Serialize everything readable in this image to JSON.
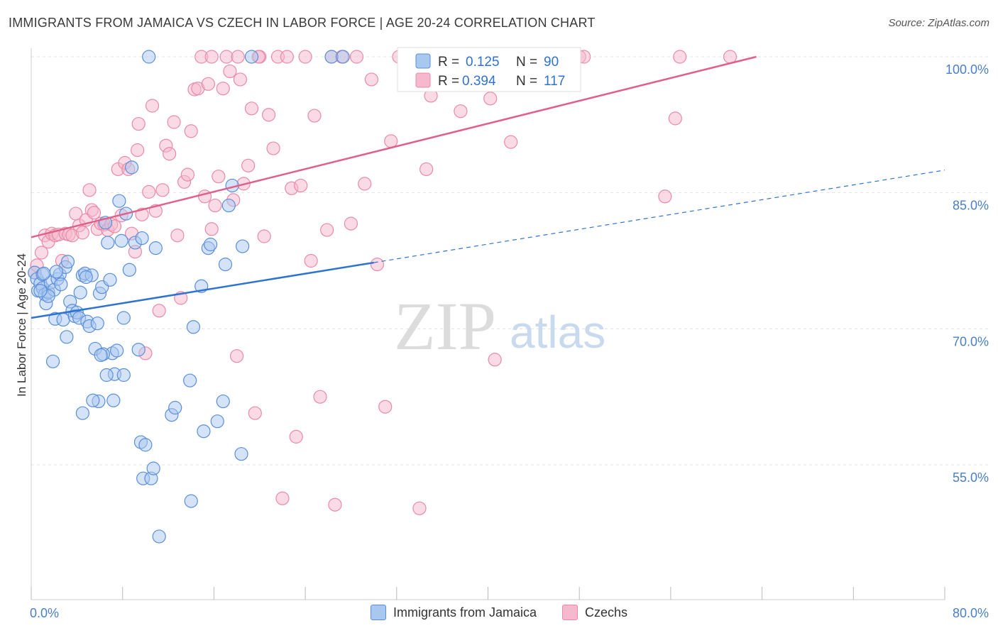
{
  "title": "IMMIGRANTS FROM JAMAICA VS CZECH IN LABOR FORCE | AGE 20-24 CORRELATION CHART",
  "source": "Source: ZipAtlas.com",
  "watermark": {
    "zip": "ZIP",
    "atlas": "atlas"
  },
  "colors": {
    "blue_fill": "#a9c8f0",
    "blue_stroke": "#5a8fd8",
    "blue_line": "#2f73d0",
    "pink_fill": "#f5b8cc",
    "pink_stroke": "#e98aa8",
    "pink_line": "#e0608a",
    "value_text": "#2f73d0",
    "grid": "#e3e3e3"
  },
  "legend_stats": [
    {
      "r_label": "R =",
      "r_value": "0.125",
      "n_label": "N =",
      "n_value": "90"
    },
    {
      "r_label": "R =",
      "r_value": "0.394",
      "n_label": "N =",
      "n_value": "117"
    }
  ],
  "chart_data": {
    "type": "scatter",
    "xlabel": "",
    "ylabel": "In Labor Force | Age 20-24",
    "xlim": [
      0,
      80
    ],
    "ylim": [
      40,
      102
    ],
    "x_tick_labels": [
      {
        "value": 0,
        "label": "0.0%"
      },
      {
        "value": 80,
        "label": "80.0%"
      }
    ],
    "y_tick_labels": [
      {
        "value": 100,
        "label": "100.0%"
      },
      {
        "value": 85,
        "label": "85.0%"
      },
      {
        "value": 70,
        "label": "70.0%"
      },
      {
        "value": 55,
        "label": "55.0%"
      }
    ],
    "legend_position": "bottom",
    "series": [
      {
        "name": "Immigrants from Jamaica",
        "color": "blue",
        "trend": {
          "x0": 0,
          "y0": 71.2,
          "x1": 30,
          "y1": 77.3,
          "dash_to_x": 80,
          "dash_to_y": 87.5
        },
        "points": [
          [
            0.3,
            76.2
          ],
          [
            0.5,
            75.5
          ],
          [
            0.6,
            74.2
          ],
          [
            0.8,
            75.0
          ],
          [
            1.0,
            74.5
          ],
          [
            1.0,
            76.0
          ],
          [
            1.2,
            73.8
          ],
          [
            1.3,
            72.8
          ],
          [
            1.5,
            74.0
          ],
          [
            1.7,
            75.1
          ],
          [
            1.9,
            66.4
          ],
          [
            2.0,
            74.3
          ],
          [
            2.1,
            71.1
          ],
          [
            2.3,
            75.5
          ],
          [
            2.5,
            76.0
          ],
          [
            2.6,
            74.9
          ],
          [
            2.8,
            71.0
          ],
          [
            3.0,
            76.8
          ],
          [
            3.2,
            77.4
          ],
          [
            3.4,
            73.0
          ],
          [
            3.6,
            72.0
          ],
          [
            3.8,
            71.4
          ],
          [
            4.0,
            71.8
          ],
          [
            4.2,
            71.2
          ],
          [
            4.3,
            74.0
          ],
          [
            4.5,
            75.9
          ],
          [
            4.7,
            76.1
          ],
          [
            4.9,
            70.8
          ],
          [
            5.1,
            70.3
          ],
          [
            5.3,
            75.9
          ],
          [
            5.6,
            67.8
          ],
          [
            5.8,
            70.6
          ],
          [
            6.0,
            73.9
          ],
          [
            6.2,
            74.6
          ],
          [
            6.5,
            81.7
          ],
          [
            6.7,
            79.5
          ],
          [
            6.9,
            75.4
          ],
          [
            7.1,
            67.3
          ],
          [
            7.3,
            65.0
          ],
          [
            7.5,
            67.6
          ],
          [
            7.7,
            84.1
          ],
          [
            7.9,
            79.7
          ],
          [
            8.1,
            71.2
          ],
          [
            8.3,
            82.7
          ],
          [
            8.6,
            76.5
          ],
          [
            8.8,
            87.8
          ],
          [
            9.1,
            79.5
          ],
          [
            9.4,
            67.7
          ],
          [
            9.6,
            57.5
          ],
          [
            9.8,
            53.5
          ],
          [
            10.0,
            57.2
          ],
          [
            10.3,
            100.0
          ],
          [
            10.5,
            53.5
          ],
          [
            10.7,
            54.6
          ],
          [
            10.9,
            78.9
          ],
          [
            11.2,
            47.1
          ],
          [
            6.3,
            67.2
          ],
          [
            5.9,
            62.0
          ],
          [
            7.2,
            62.1
          ],
          [
            12.3,
            60.5
          ],
          [
            12.6,
            61.3
          ],
          [
            13.9,
            64.3
          ],
          [
            14.0,
            51.0
          ],
          [
            14.2,
            70.2
          ],
          [
            14.9,
            74.7
          ],
          [
            15.1,
            58.7
          ],
          [
            15.5,
            78.9
          ],
          [
            15.7,
            79.3
          ],
          [
            16.3,
            59.8
          ],
          [
            17.0,
            77.1
          ],
          [
            17.3,
            83.6
          ],
          [
            17.6,
            85.8
          ],
          [
            18.4,
            56.2
          ],
          [
            18.5,
            79.1
          ],
          [
            19.3,
            100.0
          ],
          [
            26.3,
            100.0
          ],
          [
            27.3,
            100.0
          ],
          [
            5.4,
            62.1
          ],
          [
            4.5,
            60.7
          ],
          [
            9.7,
            80.0
          ],
          [
            1.5,
            73.6
          ],
          [
            3.1,
            69.1
          ],
          [
            2.2,
            76.3
          ],
          [
            0.8,
            74.2
          ],
          [
            1.1,
            76.1
          ],
          [
            4.8,
            75.7
          ],
          [
            6.6,
            64.9
          ],
          [
            8.1,
            64.9
          ],
          [
            16.8,
            62.0
          ],
          [
            6.1,
            67.1
          ]
        ]
      },
      {
        "name": "Czechs",
        "color": "pink",
        "trend": {
          "x0": 0,
          "y0": 80.1,
          "x1": 63.5,
          "y1": 100.0
        },
        "points": [
          [
            0.3,
            76.2
          ],
          [
            0.5,
            77.0
          ],
          [
            0.9,
            78.4
          ],
          [
            1.2,
            80.3
          ],
          [
            1.5,
            79.6
          ],
          [
            1.8,
            80.5
          ],
          [
            2.1,
            80.3
          ],
          [
            2.4,
            80.4
          ],
          [
            2.7,
            77.5
          ],
          [
            3.0,
            80.5
          ],
          [
            3.3,
            80.4
          ],
          [
            3.6,
            80.3
          ],
          [
            3.9,
            82.7
          ],
          [
            4.2,
            81.4
          ],
          [
            4.5,
            80.6
          ],
          [
            4.8,
            82.0
          ],
          [
            5.1,
            85.3
          ],
          [
            5.3,
            83.1
          ],
          [
            5.5,
            82.8
          ],
          [
            5.8,
            81.0
          ],
          [
            6.1,
            81.6
          ],
          [
            6.4,
            81.5
          ],
          [
            6.7,
            80.9
          ],
          [
            7.0,
            81.5
          ],
          [
            7.3,
            81.3
          ],
          [
            7.6,
            87.6
          ],
          [
            7.9,
            82.5
          ],
          [
            8.2,
            88.3
          ],
          [
            8.5,
            87.6
          ],
          [
            8.8,
            80.5
          ],
          [
            9.1,
            78.5
          ],
          [
            9.4,
            92.6
          ],
          [
            9.7,
            82.6
          ],
          [
            10.0,
            67.3
          ],
          [
            10.3,
            85.1
          ],
          [
            10.6,
            94.6
          ],
          [
            10.9,
            83.0
          ],
          [
            11.2,
            72.0
          ],
          [
            11.5,
            85.3
          ],
          [
            11.8,
            90.2
          ],
          [
            12.1,
            89.3
          ],
          [
            12.5,
            92.8
          ],
          [
            12.8,
            80.3
          ],
          [
            13.1,
            73.4
          ],
          [
            13.4,
            86.2
          ],
          [
            13.7,
            87.0
          ],
          [
            14.0,
            91.8
          ],
          [
            14.3,
            96.4
          ],
          [
            14.6,
            96.5
          ],
          [
            14.9,
            100.0
          ],
          [
            15.2,
            84.6
          ],
          [
            15.5,
            97.0
          ],
          [
            15.8,
            81.0
          ],
          [
            16.1,
            83.6
          ],
          [
            16.4,
            86.8
          ],
          [
            16.8,
            96.5
          ],
          [
            17.1,
            100.0
          ],
          [
            17.4,
            98.4
          ],
          [
            17.7,
            84.2
          ],
          [
            18.0,
            67.0
          ],
          [
            18.3,
            97.5
          ],
          [
            18.6,
            86.0
          ],
          [
            19.0,
            88.0
          ],
          [
            19.3,
            94.3
          ],
          [
            19.6,
            60.7
          ],
          [
            20.0,
            100.0
          ],
          [
            20.4,
            80.2
          ],
          [
            20.8,
            93.6
          ],
          [
            21.2,
            89.9
          ],
          [
            21.6,
            100.0
          ],
          [
            22.0,
            51.3
          ],
          [
            22.4,
            100.0
          ],
          [
            22.8,
            85.5
          ],
          [
            23.2,
            58.1
          ],
          [
            23.6,
            85.8
          ],
          [
            24.0,
            100.0
          ],
          [
            24.5,
            77.5
          ],
          [
            24.8,
            93.5
          ],
          [
            25.3,
            62.5
          ],
          [
            25.9,
            80.9
          ],
          [
            26.3,
            100.0
          ],
          [
            26.6,
            50.6
          ],
          [
            27.2,
            100.0
          ],
          [
            28.0,
            81.6
          ],
          [
            28.5,
            100.0
          ],
          [
            29.2,
            86.0
          ],
          [
            29.8,
            97.5
          ],
          [
            30.3,
            77.1
          ],
          [
            31.0,
            61.4
          ],
          [
            31.5,
            90.7
          ],
          [
            32.2,
            100.0
          ],
          [
            32.7,
            100.0
          ],
          [
            33.2,
            100.0
          ],
          [
            34.0,
            50.2
          ],
          [
            34.6,
            87.6
          ],
          [
            35.0,
            95.7
          ],
          [
            35.4,
            100.0
          ],
          [
            36.2,
            100.0
          ],
          [
            37.0,
            100.0
          ],
          [
            37.6,
            94.0
          ],
          [
            38.5,
            100.0
          ],
          [
            40.2,
            95.4
          ],
          [
            40.6,
            66.6
          ],
          [
            41.2,
            100.0
          ],
          [
            42.0,
            90.6
          ],
          [
            44.0,
            100.0
          ],
          [
            46.0,
            100.0
          ],
          [
            48.0,
            100.0
          ],
          [
            48.4,
            100.0
          ],
          [
            55.5,
            84.6
          ],
          [
            56.8,
            100.0
          ],
          [
            56.4,
            93.2
          ],
          [
            61.2,
            100.0
          ],
          [
            15.8,
            100.0
          ],
          [
            18.1,
            100.0
          ],
          [
            9.3,
            89.7
          ],
          [
            19.9,
            100.0
          ]
        ]
      }
    ]
  }
}
